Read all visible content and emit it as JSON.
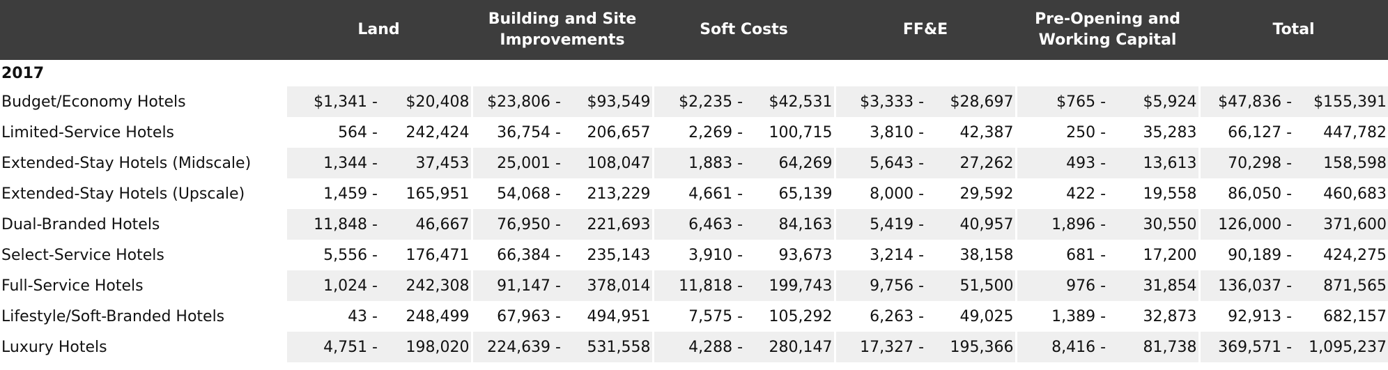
{
  "table": {
    "columns": [
      "Land",
      "Building and Site Improvements",
      "Soft Costs",
      "FF&E",
      "Pre-Opening and Working Capital",
      "Total"
    ],
    "section": "2017",
    "rows": [
      {
        "label": "Budget/Economy Hotels",
        "values": [
          "$1,341 -",
          "$20,408",
          "$23,806 -",
          "$93,549",
          "$2,235 -",
          "$42,531",
          "$3,333 -",
          "$28,697",
          "$765 -",
          "$5,924",
          "$47,836 -",
          "$155,391"
        ]
      },
      {
        "label": "Limited-Service Hotels",
        "values": [
          "564 -",
          "242,424",
          "36,754 -",
          "206,657",
          "2,269 -",
          "100,715",
          "3,810 -",
          "42,387",
          "250 -",
          "35,283",
          "66,127 -",
          "447,782"
        ]
      },
      {
        "label": "Extended-Stay Hotels (Midscale)",
        "values": [
          "1,344 -",
          "37,453",
          "25,001 -",
          "108,047",
          "1,883 -",
          "64,269",
          "5,643 -",
          "27,262",
          "493 -",
          "13,613",
          "70,298 -",
          "158,598"
        ]
      },
      {
        "label": "Extended-Stay Hotels (Upscale)",
        "values": [
          "1,459 -",
          "165,951",
          "54,068 -",
          "213,229",
          "4,661 -",
          "65,139",
          "8,000 -",
          "29,592",
          "422 -",
          "19,558",
          "86,050 -",
          "460,683"
        ]
      },
      {
        "label": "Dual-Branded Hotels",
        "values": [
          "11,848 -",
          "46,667",
          "76,950 -",
          "221,693",
          "6,463 -",
          "84,163",
          "5,419 -",
          "40,957",
          "1,896 -",
          "30,550",
          "126,000 -",
          "371,600"
        ]
      },
      {
        "label": "Select-Service Hotels",
        "values": [
          "5,556 -",
          "176,471",
          "66,384 -",
          "235,143",
          "3,910 -",
          "93,673",
          "3,214 -",
          "38,158",
          "681 -",
          "17,200",
          "90,189 -",
          "424,275"
        ]
      },
      {
        "label": "Full-Service Hotels",
        "values": [
          "1,024 -",
          "242,308",
          "91,147 -",
          "378,014",
          "11,818 -",
          "199,743",
          "9,756 -",
          "51,500",
          "976 -",
          "31,854",
          "136,037 -",
          "871,565"
        ]
      },
      {
        "label": "Lifestyle/Soft-Branded Hotels",
        "values": [
          "43 -",
          "248,499",
          "67,963 -",
          "494,951",
          "7,575 -",
          "105,292",
          "6,263 -",
          "49,025",
          "1,389 -",
          "32,873",
          "92,913 -",
          "682,157"
        ]
      },
      {
        "label": "Luxury Hotels",
        "values": [
          "4,751 -",
          "198,020",
          "224,639 -",
          "531,558",
          "4,288 -",
          "280,147",
          "17,327 -",
          "195,366",
          "8,416 -",
          "81,738",
          "369,571 -",
          "1,095,237"
        ]
      }
    ]
  }
}
